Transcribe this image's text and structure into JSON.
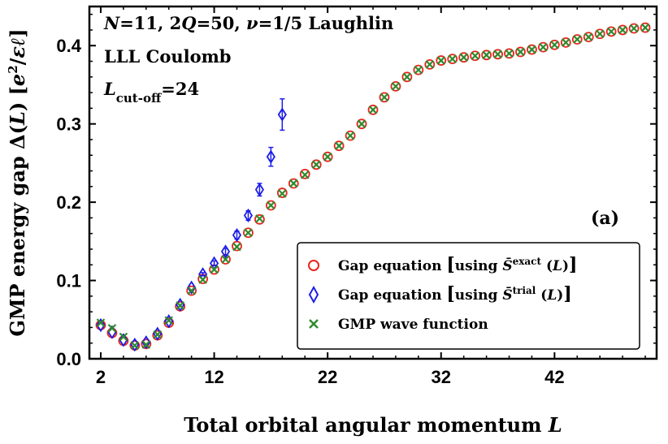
{
  "chart_data": {
    "type": "scatter",
    "title": "",
    "xlabel": "Total orbital angular momentum L",
    "ylabel": "GMP energy gap Δ(L) [e²/εℓ]",
    "xlim": [
      1,
      51
    ],
    "ylim": [
      0,
      0.45
    ],
    "xticks": [
      2,
      12,
      22,
      32,
      42
    ],
    "yticks": [
      0.0,
      0.1,
      0.2,
      0.3,
      0.4
    ],
    "tick_labels_y": [
      "0.0",
      "0.1",
      "0.2",
      "0.3",
      "0.4"
    ],
    "tick_labels_x": [
      "2",
      "12",
      "22",
      "32",
      "42"
    ],
    "grid": false,
    "legend_placement": "lower-right",
    "annotations": {
      "line1": "N=11,  2Q=50,  ν=1/5 Laughlin",
      "line2": "LLL Coulomb",
      "line3": "L_cut-off=24",
      "panel": "(a)"
    },
    "series": [
      {
        "name": "Gap equation [using S̄exact(L)]",
        "marker": "circle",
        "color": "#e8261c",
        "x": [
          2,
          3,
          4,
          5,
          6,
          7,
          8,
          9,
          10,
          11,
          12,
          13,
          14,
          15,
          16,
          17,
          18,
          19,
          20,
          21,
          22,
          23,
          24,
          25,
          26,
          27,
          28,
          29,
          30,
          31,
          32,
          33,
          34,
          35,
          36,
          37,
          38,
          39,
          40,
          41,
          42,
          43,
          44,
          45,
          46,
          47,
          48,
          49,
          50
        ],
        "y": [
          0.043,
          0.033,
          0.023,
          0.017,
          0.019,
          0.03,
          0.046,
          0.067,
          0.087,
          0.102,
          0.114,
          0.127,
          0.144,
          0.161,
          0.178,
          0.196,
          0.212,
          0.224,
          0.236,
          0.248,
          0.258,
          0.272,
          0.285,
          0.3,
          0.318,
          0.334,
          0.348,
          0.36,
          0.369,
          0.376,
          0.381,
          0.383,
          0.385,
          0.387,
          0.388,
          0.389,
          0.39,
          0.392,
          0.395,
          0.398,
          0.401,
          0.404,
          0.408,
          0.411,
          0.415,
          0.418,
          0.42,
          0.422,
          0.423
        ]
      },
      {
        "name": "Gap equation [using S̄trial(L)]",
        "marker": "diamond",
        "color": "#1c1ce8",
        "x": [
          2,
          3,
          4,
          5,
          6,
          7,
          8,
          9,
          10,
          11,
          12,
          13,
          14,
          15,
          16,
          17,
          18
        ],
        "y": [
          0.043,
          0.034,
          0.024,
          0.018,
          0.021,
          0.032,
          0.048,
          0.069,
          0.091,
          0.108,
          0.122,
          0.137,
          0.158,
          0.183,
          0.216,
          0.258,
          0.312
        ],
        "yerr": [
          0,
          0,
          0,
          0,
          0,
          0,
          0,
          0,
          0,
          0.002,
          0.003,
          0.004,
          0.005,
          0.006,
          0.008,
          0.012,
          0.02
        ]
      },
      {
        "name": "GMP wave function",
        "marker": "x",
        "color": "#2e8b2e",
        "x": [
          2,
          3,
          4,
          5,
          6,
          7,
          8,
          9,
          10,
          11,
          12,
          13,
          14,
          15,
          16,
          17,
          18,
          19,
          20,
          21,
          22,
          23,
          24,
          25,
          26,
          27,
          28,
          29,
          30,
          31,
          32,
          33,
          34,
          35,
          36,
          37,
          38,
          39,
          40,
          41,
          42,
          43,
          44,
          45,
          46,
          47,
          48,
          49,
          50
        ],
        "y": [
          0.046,
          0.039,
          0.028,
          0.017,
          0.018,
          0.031,
          0.049,
          0.068,
          0.087,
          0.101,
          0.114,
          0.127,
          0.143,
          0.161,
          0.179,
          0.196,
          0.211,
          0.224,
          0.235,
          0.248,
          0.258,
          0.272,
          0.285,
          0.3,
          0.318,
          0.334,
          0.348,
          0.36,
          0.369,
          0.376,
          0.381,
          0.383,
          0.385,
          0.387,
          0.388,
          0.389,
          0.39,
          0.392,
          0.395,
          0.398,
          0.401,
          0.404,
          0.408,
          0.411,
          0.415,
          0.418,
          0.42,
          0.422,
          0.423
        ]
      }
    ]
  }
}
